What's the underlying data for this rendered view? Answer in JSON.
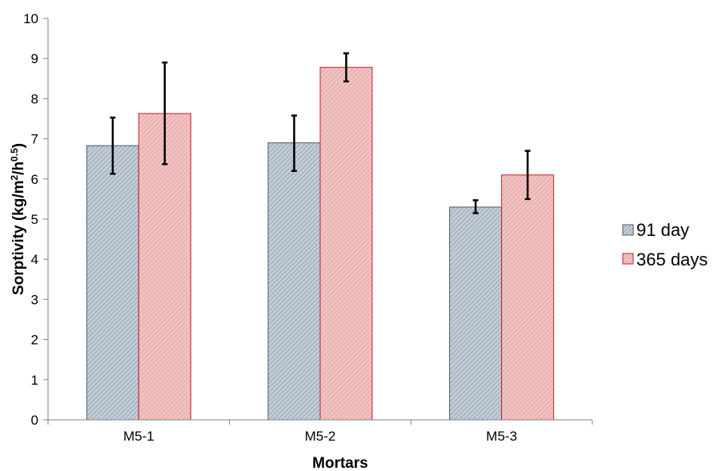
{
  "chart_data": {
    "type": "bar",
    "title": "",
    "xlabel": "Mortars",
    "ylabel": {
      "main": "Sorptivity (kg/m",
      "sup1": "2",
      "mid": "/h",
      "sup2": "0.5",
      "end": ")"
    },
    "ylim": [
      0,
      10
    ],
    "yticks": [
      "0",
      "1",
      "2",
      "3",
      "4",
      "5",
      "6",
      "7",
      "8",
      "9",
      "10"
    ],
    "categories": [
      "M5-1",
      "M5-2",
      "M5-3"
    ],
    "series": [
      {
        "name": "91 day",
        "values": [
          6.83,
          6.9,
          5.3
        ],
        "err_low": [
          6.13,
          6.2,
          5.15
        ],
        "err_high": [
          7.53,
          7.58,
          5.47
        ],
        "fill": "#b5c2cf",
        "stroke": "#4d5a66"
      },
      {
        "name": "365 days",
        "values": [
          7.63,
          8.78,
          6.1
        ],
        "err_low": [
          6.37,
          8.43,
          5.5
        ],
        "err_high": [
          8.9,
          9.13,
          6.7
        ],
        "fill": "#ebb3b3",
        "stroke": "#c0202a"
      }
    ],
    "grid": false,
    "legend_position": "right"
  }
}
